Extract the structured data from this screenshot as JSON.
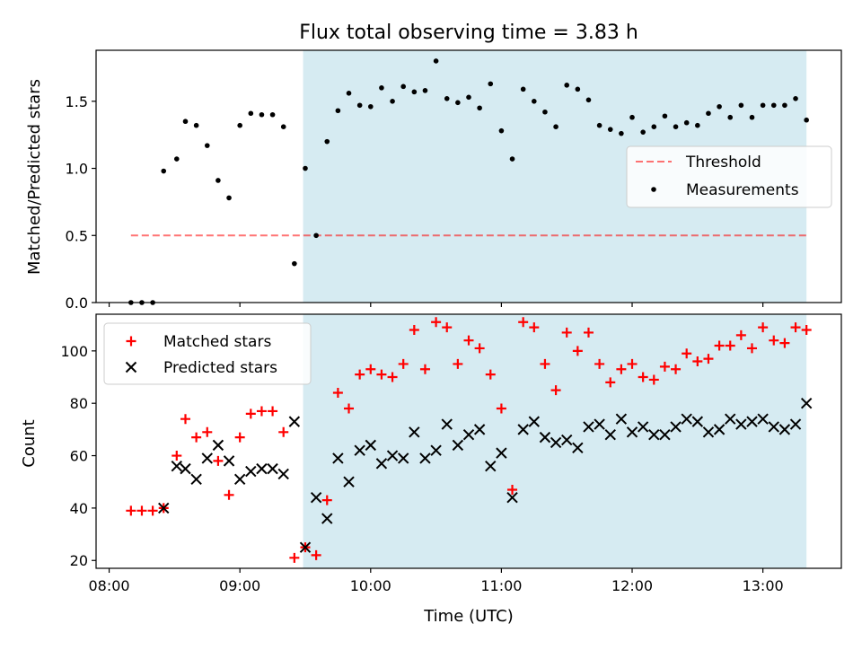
{
  "title": "Flux total observing time = 3.83 h",
  "colors": {
    "shade": "#add8e6",
    "threshold": "#ff0000",
    "matched": "#ff0000",
    "predicted": "#000000",
    "measurement": "#000000"
  },
  "chart_data": [
    {
      "type": "scatter",
      "xlabel": "",
      "ylabel": "Matched/Predicted stars",
      "x_ticks": [
        "08:00",
        "09:00",
        "10:00",
        "11:00",
        "12:00",
        "13:00"
      ],
      "x_tick_labels_visible": false,
      "y_ticks": [
        "0.0",
        "0.5",
        "1.0",
        "1.5"
      ],
      "ylim": [
        0,
        1.88
      ],
      "xlim": [
        "07:54",
        "13:36"
      ],
      "shaded_interval": [
        "09:29",
        "13:20"
      ],
      "legend": {
        "position": "center-right",
        "entries": [
          "Threshold",
          "Measurements"
        ]
      },
      "threshold": {
        "name": "Threshold",
        "value": 0.5,
        "x_range": [
          "08:10",
          "13:20"
        ],
        "style": "dashed"
      },
      "series": [
        {
          "name": "Measurements",
          "marker": "dot",
          "points": [
            [
              "08:10",
              0.0
            ],
            [
              "08:15",
              0.0
            ],
            [
              "08:20",
              0.0
            ],
            [
              "08:25",
              0.98
            ],
            [
              "08:31",
              1.07
            ],
            [
              "08:35",
              1.35
            ],
            [
              "08:40",
              1.32
            ],
            [
              "08:45",
              1.17
            ],
            [
              "08:50",
              0.91
            ],
            [
              "08:55",
              0.78
            ],
            [
              "09:00",
              1.32
            ],
            [
              "09:05",
              1.41
            ],
            [
              "09:10",
              1.4
            ],
            [
              "09:15",
              1.4
            ],
            [
              "09:20",
              1.31
            ],
            [
              "09:25",
              0.29
            ],
            [
              "09:30",
              1.0
            ],
            [
              "09:35",
              0.5
            ],
            [
              "09:40",
              1.2
            ],
            [
              "09:45",
              1.43
            ],
            [
              "09:50",
              1.56
            ],
            [
              "09:55",
              1.47
            ],
            [
              "10:00",
              1.46
            ],
            [
              "10:05",
              1.6
            ],
            [
              "10:10",
              1.5
            ],
            [
              "10:15",
              1.61
            ],
            [
              "10:20",
              1.57
            ],
            [
              "10:25",
              1.58
            ],
            [
              "10:30",
              1.8
            ],
            [
              "10:35",
              1.52
            ],
            [
              "10:40",
              1.49
            ],
            [
              "10:45",
              1.53
            ],
            [
              "10:50",
              1.45
            ],
            [
              "10:55",
              1.63
            ],
            [
              "11:00",
              1.28
            ],
            [
              "11:05",
              1.07
            ],
            [
              "11:10",
              1.59
            ],
            [
              "11:15",
              1.5
            ],
            [
              "11:20",
              1.42
            ],
            [
              "11:25",
              1.31
            ],
            [
              "11:30",
              1.62
            ],
            [
              "11:35",
              1.59
            ],
            [
              "11:40",
              1.51
            ],
            [
              "11:45",
              1.32
            ],
            [
              "11:50",
              1.29
            ],
            [
              "11:55",
              1.26
            ],
            [
              "12:00",
              1.38
            ],
            [
              "12:05",
              1.27
            ],
            [
              "12:10",
              1.31
            ],
            [
              "12:15",
              1.39
            ],
            [
              "12:20",
              1.31
            ],
            [
              "12:25",
              1.34
            ],
            [
              "12:30",
              1.32
            ],
            [
              "12:35",
              1.41
            ],
            [
              "12:40",
              1.46
            ],
            [
              "12:45",
              1.38
            ],
            [
              "12:50",
              1.47
            ],
            [
              "12:55",
              1.38
            ],
            [
              "13:00",
              1.47
            ],
            [
              "13:05",
              1.47
            ],
            [
              "13:10",
              1.47
            ],
            [
              "13:15",
              1.52
            ],
            [
              "13:20",
              1.36
            ]
          ]
        }
      ]
    },
    {
      "type": "scatter",
      "xlabel": "Time (UTC)",
      "ylabel": "Count",
      "x_ticks": [
        "08:00",
        "09:00",
        "10:00",
        "11:00",
        "12:00",
        "13:00"
      ],
      "y_ticks": [
        "20",
        "40",
        "60",
        "80",
        "100"
      ],
      "ylim": [
        17,
        114
      ],
      "xlim": [
        "07:54",
        "13:36"
      ],
      "shaded_interval": [
        "09:29",
        "13:20"
      ],
      "legend": {
        "position": "top-left",
        "entries": [
          "Matched stars",
          "Predicted stars"
        ]
      },
      "series": [
        {
          "name": "Matched stars",
          "marker": "plus",
          "points": [
            [
              "08:10",
              39
            ],
            [
              "08:15",
              39
            ],
            [
              "08:20",
              39
            ],
            [
              "08:25",
              40
            ],
            [
              "08:31",
              60
            ],
            [
              "08:35",
              74
            ],
            [
              "08:40",
              67
            ],
            [
              "08:45",
              69
            ],
            [
              "08:50",
              58
            ],
            [
              "08:55",
              45
            ],
            [
              "09:00",
              67
            ],
            [
              "09:05",
              76
            ],
            [
              "09:10",
              77
            ],
            [
              "09:15",
              77
            ],
            [
              "09:20",
              69
            ],
            [
              "09:25",
              21
            ],
            [
              "09:30",
              25
            ],
            [
              "09:35",
              22
            ],
            [
              "09:40",
              43
            ],
            [
              "09:45",
              84
            ],
            [
              "09:50",
              78
            ],
            [
              "09:55",
              91
            ],
            [
              "10:00",
              93
            ],
            [
              "10:05",
              91
            ],
            [
              "10:10",
              90
            ],
            [
              "10:15",
              95
            ],
            [
              "10:20",
              108
            ],
            [
              "10:25",
              93
            ],
            [
              "10:30",
              111
            ],
            [
              "10:35",
              109
            ],
            [
              "10:40",
              95
            ],
            [
              "10:45",
              104
            ],
            [
              "10:50",
              101
            ],
            [
              "10:55",
              91
            ],
            [
              "11:00",
              78
            ],
            [
              "11:05",
              47
            ],
            [
              "11:10",
              111
            ],
            [
              "11:15",
              109
            ],
            [
              "11:20",
              95
            ],
            [
              "11:25",
              85
            ],
            [
              "11:30",
              107
            ],
            [
              "11:35",
              100
            ],
            [
              "11:40",
              107
            ],
            [
              "11:45",
              95
            ],
            [
              "11:50",
              88
            ],
            [
              "11:55",
              93
            ],
            [
              "12:00",
              95
            ],
            [
              "12:05",
              90
            ],
            [
              "12:10",
              89
            ],
            [
              "12:15",
              94
            ],
            [
              "12:20",
              93
            ],
            [
              "12:25",
              99
            ],
            [
              "12:30",
              96
            ],
            [
              "12:35",
              97
            ],
            [
              "12:40",
              102
            ],
            [
              "12:45",
              102
            ],
            [
              "12:50",
              106
            ],
            [
              "12:55",
              101
            ],
            [
              "13:00",
              109
            ],
            [
              "13:05",
              104
            ],
            [
              "13:10",
              103
            ],
            [
              "13:15",
              109
            ],
            [
              "13:20",
              108
            ]
          ]
        },
        {
          "name": "Predicted stars",
          "marker": "x",
          "points": [
            [
              "08:25",
              40
            ],
            [
              "08:31",
              56
            ],
            [
              "08:35",
              55
            ],
            [
              "08:40",
              51
            ],
            [
              "08:45",
              59
            ],
            [
              "08:50",
              64
            ],
            [
              "08:55",
              58
            ],
            [
              "09:00",
              51
            ],
            [
              "09:05",
              54
            ],
            [
              "09:10",
              55
            ],
            [
              "09:15",
              55
            ],
            [
              "09:20",
              53
            ],
            [
              "09:25",
              73
            ],
            [
              "09:30",
              25
            ],
            [
              "09:35",
              44
            ],
            [
              "09:40",
              36
            ],
            [
              "09:45",
              59
            ],
            [
              "09:50",
              50
            ],
            [
              "09:55",
              62
            ],
            [
              "10:00",
              64
            ],
            [
              "10:05",
              57
            ],
            [
              "10:10",
              60
            ],
            [
              "10:15",
              59
            ],
            [
              "10:20",
              69
            ],
            [
              "10:25",
              59
            ],
            [
              "10:30",
              62
            ],
            [
              "10:35",
              72
            ],
            [
              "10:40",
              64
            ],
            [
              "10:45",
              68
            ],
            [
              "10:50",
              70
            ],
            [
              "10:55",
              56
            ],
            [
              "11:00",
              61
            ],
            [
              "11:05",
              44
            ],
            [
              "11:10",
              70
            ],
            [
              "11:15",
              73
            ],
            [
              "11:20",
              67
            ],
            [
              "11:25",
              65
            ],
            [
              "11:30",
              66
            ],
            [
              "11:35",
              63
            ],
            [
              "11:40",
              71
            ],
            [
              "11:45",
              72
            ],
            [
              "11:50",
              68
            ],
            [
              "11:55",
              74
            ],
            [
              "12:00",
              69
            ],
            [
              "12:05",
              71
            ],
            [
              "12:10",
              68
            ],
            [
              "12:15",
              68
            ],
            [
              "12:20",
              71
            ],
            [
              "12:25",
              74
            ],
            [
              "12:30",
              73
            ],
            [
              "12:35",
              69
            ],
            [
              "12:40",
              70
            ],
            [
              "12:45",
              74
            ],
            [
              "12:50",
              72
            ],
            [
              "12:55",
              73
            ],
            [
              "13:00",
              74
            ],
            [
              "13:05",
              71
            ],
            [
              "13:10",
              70
            ],
            [
              "13:15",
              72
            ],
            [
              "13:20",
              80
            ]
          ]
        }
      ]
    }
  ]
}
